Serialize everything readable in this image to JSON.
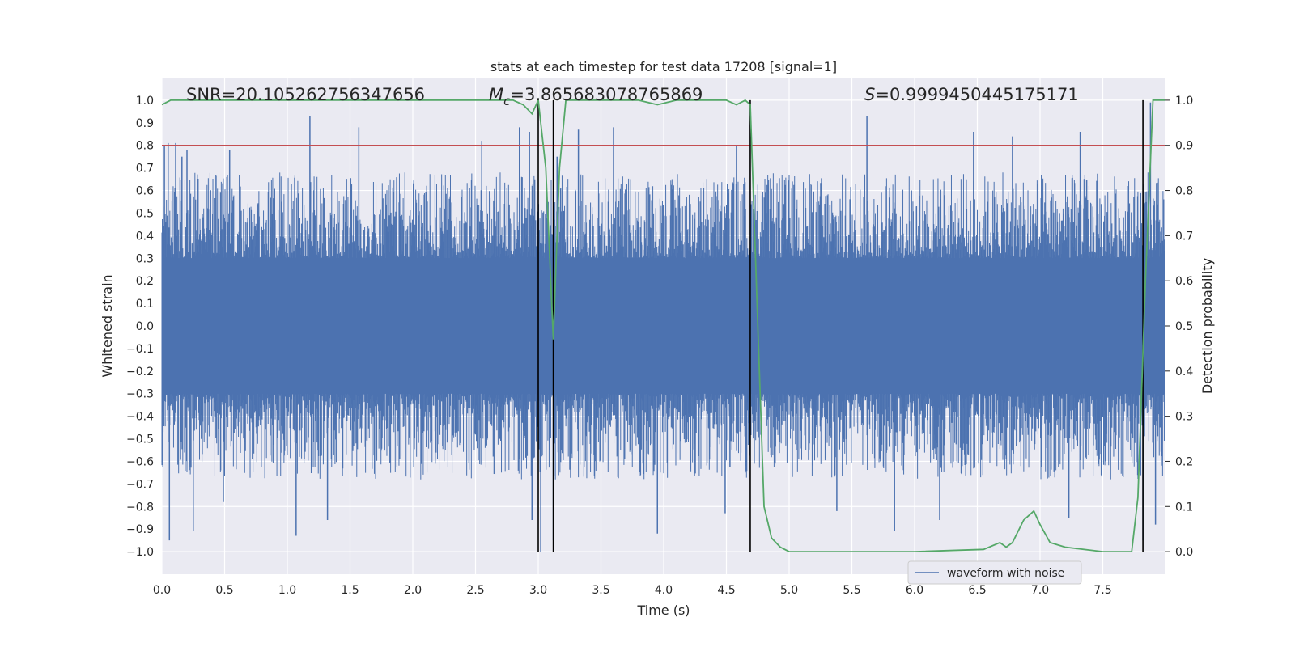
{
  "chart_data": {
    "type": "line",
    "title": "stats at each timestep for test data 17208 [signal=1]",
    "xlabel": "Time (s)",
    "ylabel_left": "Whitened strain",
    "ylabel_right": "Detection probability",
    "xlim": [
      0,
      8
    ],
    "ylim_left": [
      -1.1,
      1.1
    ],
    "ylim_right": [
      -0.05,
      1.05
    ],
    "xticks": [
      "0.0",
      "0.5",
      "1.0",
      "1.5",
      "2.0",
      "2.5",
      "3.0",
      "3.5",
      "4.0",
      "4.5",
      "5.0",
      "5.5",
      "6.0",
      "6.5",
      "7.0",
      "7.5"
    ],
    "xtick_values": [
      0,
      0.5,
      1,
      1.5,
      2,
      2.5,
      3,
      3.5,
      4,
      4.5,
      5,
      5.5,
      6,
      6.5,
      7,
      7.5
    ],
    "yticks_left": [
      "1.0",
      "0.9",
      "0.8",
      "0.7",
      "0.6",
      "0.5",
      "0.4",
      "0.3",
      "0.2",
      "0.1",
      "0.0",
      "−0.1",
      "−0.2",
      "−0.3",
      "−0.4",
      "−0.5",
      "−0.6",
      "−0.7",
      "−0.8",
      "−0.9",
      "−1.0"
    ],
    "ytick_values_left": [
      1.0,
      0.9,
      0.8,
      0.7,
      0.6,
      0.5,
      0.4,
      0.3,
      0.2,
      0.1,
      0.0,
      -0.1,
      -0.2,
      -0.3,
      -0.4,
      -0.5,
      -0.6,
      -0.7,
      -0.8,
      -0.9,
      -1.0
    ],
    "yticks_right": [
      "1.0",
      "0.9",
      "0.8",
      "0.7",
      "0.6",
      "0.5",
      "0.4",
      "0.3",
      "0.2",
      "0.1",
      "0.0"
    ],
    "ytick_values_right": [
      1.0,
      0.9,
      0.8,
      0.7,
      0.6,
      0.5,
      0.4,
      0.3,
      0.2,
      0.1,
      0.0
    ],
    "annotations": {
      "snr": "SNR=20.105262756347656",
      "mc_symbol": "M",
      "mc_subscript": "c",
      "mc_value": "=3.865683078765869",
      "s_symbol": "S",
      "s_value": "=0.9999450445175171"
    },
    "legend": {
      "label": "waveform with noise",
      "location": "lower-right"
    },
    "threshold": {
      "axis": "right",
      "value": 0.9,
      "color": "#c44e52"
    },
    "vertical_lines": [
      3.0,
      3.12,
      4.69,
      7.82
    ],
    "waveform": {
      "name": "waveform with noise",
      "color": "#4c72b0",
      "envelope_abs": 0.3,
      "peaks": [
        {
          "x": 0.02,
          "y": 0.8
        },
        {
          "x": 0.05,
          "y": 0.81
        },
        {
          "x": 0.11,
          "y": 0.81
        },
        {
          "x": 0.16,
          "y": 0.75
        },
        {
          "x": 0.2,
          "y": 0.78
        },
        {
          "x": 0.54,
          "y": 0.78
        },
        {
          "x": 1.18,
          "y": 0.93
        },
        {
          "x": 1.57,
          "y": 0.88
        },
        {
          "x": 2.55,
          "y": 0.82
        },
        {
          "x": 2.85,
          "y": 0.88
        },
        {
          "x": 2.93,
          "y": 0.86
        },
        {
          "x": 3.15,
          "y": 0.75
        },
        {
          "x": 3.32,
          "y": 0.87
        },
        {
          "x": 3.6,
          "y": 0.88
        },
        {
          "x": 4.58,
          "y": 0.8
        },
        {
          "x": 5.62,
          "y": 0.93
        },
        {
          "x": 6.47,
          "y": 0.86
        },
        {
          "x": 6.78,
          "y": 0.84
        },
        {
          "x": 7.32,
          "y": 0.86
        },
        {
          "x": 7.88,
          "y": 0.99
        },
        {
          "x": 0.06,
          "y": -0.95
        },
        {
          "x": 0.25,
          "y": -0.91
        },
        {
          "x": 0.49,
          "y": -0.78
        },
        {
          "x": 1.07,
          "y": -0.93
        },
        {
          "x": 1.32,
          "y": -0.86
        },
        {
          "x": 2.95,
          "y": -0.86
        },
        {
          "x": 3.02,
          "y": -1.0
        },
        {
          "x": 3.12,
          "y": -0.95
        },
        {
          "x": 3.95,
          "y": -0.92
        },
        {
          "x": 4.49,
          "y": -0.83
        },
        {
          "x": 5.38,
          "y": -0.82
        },
        {
          "x": 5.84,
          "y": -0.91
        },
        {
          "x": 6.2,
          "y": -0.86
        },
        {
          "x": 7.23,
          "y": -0.85
        },
        {
          "x": 7.82,
          "y": -0.95
        },
        {
          "x": 7.92,
          "y": -0.88
        }
      ]
    },
    "detection_probability": {
      "name": "detection probability",
      "color": "#55a868",
      "x": [
        0.0,
        0.07,
        0.5,
        1.0,
        1.5,
        2.0,
        2.5,
        2.8,
        2.88,
        2.95,
        3.0,
        3.06,
        3.12,
        3.17,
        3.22,
        3.3,
        3.5,
        3.8,
        3.95,
        4.1,
        4.5,
        4.58,
        4.65,
        4.69,
        4.75,
        4.8,
        4.86,
        4.93,
        5.0,
        5.5,
        6.0,
        6.55,
        6.68,
        6.73,
        6.78,
        6.87,
        6.95,
        7.0,
        7.08,
        7.2,
        7.5,
        7.73,
        7.78,
        7.84,
        7.9,
        7.95,
        8.0
      ],
      "y": [
        0.99,
        1.0,
        1.0,
        1.0,
        1.0,
        1.0,
        1.0,
        1.0,
        0.99,
        0.97,
        1.0,
        0.85,
        0.47,
        0.85,
        1.0,
        1.0,
        1.0,
        1.0,
        0.99,
        1.0,
        1.0,
        0.99,
        1.0,
        0.99,
        0.5,
        0.1,
        0.03,
        0.01,
        0.0,
        0.0,
        0.0,
        0.005,
        0.02,
        0.01,
        0.02,
        0.07,
        0.09,
        0.06,
        0.02,
        0.01,
        0.0,
        0.0,
        0.12,
        0.6,
        1.0,
        1.0,
        1.0
      ]
    }
  }
}
